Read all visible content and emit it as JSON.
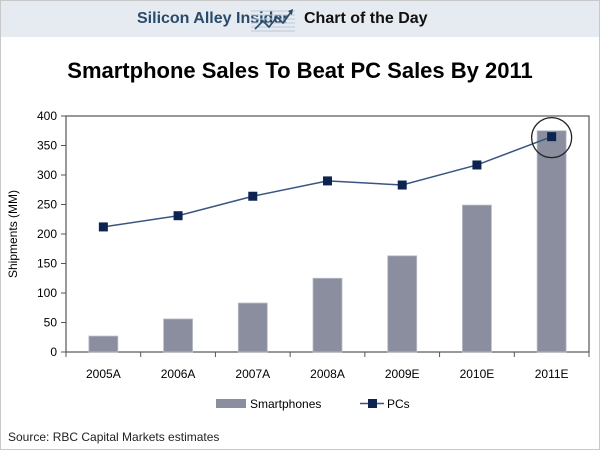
{
  "header": {
    "brand": "Silicon Alley Insider",
    "logo_icon": "rising-chart-icon",
    "section": "Chart of the Day"
  },
  "source": "Source: RBC Capital Markets estimates",
  "colors": {
    "bar": "#8a8e9e",
    "line": "#3a5580",
    "marker": "#0e2450",
    "header_bg": "#e6ebf1",
    "brand": "#2a4a6a"
  },
  "chart_data": {
    "type": "bar",
    "title": "Smartphone Sales To Beat PC Sales By 2011",
    "xlabel": "",
    "ylabel": "Shipments (MM)",
    "ylim": [
      0,
      400
    ],
    "yticks": [
      0,
      50,
      100,
      150,
      200,
      250,
      300,
      350,
      400
    ],
    "categories": [
      "2005A",
      "2006A",
      "2007A",
      "2008A",
      "2009E",
      "2010E",
      "2011E"
    ],
    "series": [
      {
        "name": "Smartphones",
        "type": "bar",
        "values": [
          27,
          56,
          83,
          125,
          163,
          249,
          375
        ]
      },
      {
        "name": "PCs",
        "type": "line",
        "marker": "square",
        "values": [
          212,
          231,
          264,
          290,
          283,
          317,
          365
        ]
      }
    ],
    "annotations": [
      {
        "type": "circle",
        "category": "2011E",
        "note": "highlight crossover point"
      }
    ],
    "legend": "bottom-center",
    "grid": false
  }
}
